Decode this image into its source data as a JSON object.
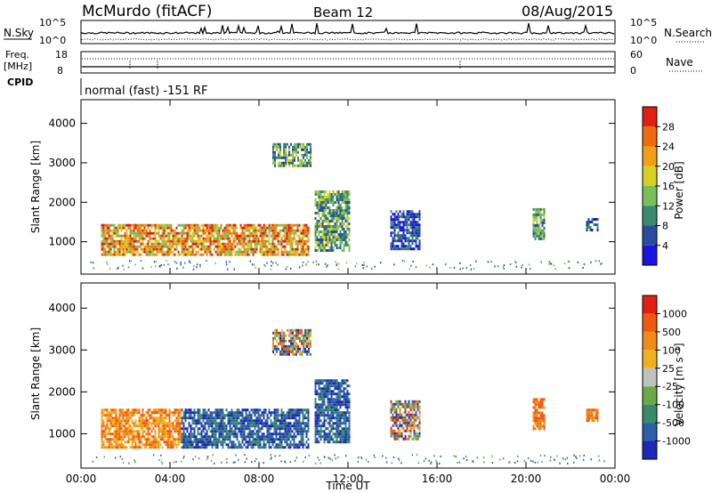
{
  "header": {
    "station": "McMurdo (fitACF)",
    "beam": "Beam 12",
    "date": "08/Aug/2015"
  },
  "strip": {
    "nsky_label": "N.Sky",
    "nsearch_label": "N.Search",
    "noise_ticks": [
      "10^5",
      "10^0"
    ],
    "freq_label_1": "Freq.",
    "freq_label_2": "[MHz]",
    "freq_ticks": [
      "18",
      "8"
    ],
    "nave_label": "Nave",
    "nave_ticks": [
      "60",
      "0"
    ],
    "cpid_label": "CPID",
    "cpid_text": "normal (fast) -151 RF"
  },
  "colorbars": {
    "power": {
      "label": "Power [dB]",
      "ticks": [
        "28",
        "24",
        "20",
        "16",
        "12",
        "8",
        "4"
      ],
      "colors": [
        "#1a14e0",
        "#2a4ca0",
        "#3a8a70",
        "#7ac05a",
        "#d8d020",
        "#f0a018",
        "#f06a10",
        "#e02010"
      ]
    },
    "velocity": {
      "label": "Velocity [m s⁻¹]",
      "ticks": [
        "1000",
        "500",
        "100",
        "25",
        "-25",
        "-100",
        "-500",
        "-1000"
      ],
      "colors": [
        "#1c2ab8",
        "#2e5ea8",
        "#3a8a6a",
        "#6aa84a",
        "#c0c0c0",
        "#f0b020",
        "#f08a18",
        "#f05a10",
        "#e02010"
      ]
    }
  },
  "chart_data": [
    {
      "type": "heatmap",
      "title": "Power",
      "ylabel": "Slant Range [km]",
      "xlabel": "Time UT",
      "x_ticks": [
        "00:00",
        "04:00",
        "08:00",
        "12:00",
        "16:00",
        "20:00",
        "00:00"
      ],
      "y_ticks": [
        "1000",
        "2000",
        "3000",
        "4000"
      ],
      "xlim_hours": [
        0,
        24
      ],
      "ylim_km": [
        180,
        4600
      ],
      "echo_regions": [
        {
          "t0": 0.9,
          "t1": 10.2,
          "r0": 650,
          "r1": 1450,
          "level": "high"
        },
        {
          "t0": 10.5,
          "t1": 12.1,
          "r0": 800,
          "r1": 2300,
          "level": "mid"
        },
        {
          "t0": 8.6,
          "t1": 10.3,
          "r0": 2900,
          "r1": 3500,
          "level": "mid"
        },
        {
          "t0": 13.9,
          "t1": 15.2,
          "r0": 850,
          "r1": 1800,
          "level": "low"
        },
        {
          "t0": 20.3,
          "t1": 20.8,
          "r0": 1100,
          "r1": 1850,
          "level": "mid"
        },
        {
          "t0": 22.7,
          "t1": 23.2,
          "r0": 1300,
          "r1": 1600,
          "level": "low"
        }
      ]
    },
    {
      "type": "heatmap",
      "title": "Velocity",
      "ylabel": "Slant Range [km]",
      "xlabel": "Time UT",
      "x_ticks": [
        "00:00",
        "04:00",
        "08:00",
        "12:00",
        "16:00",
        "20:00",
        "00:00"
      ],
      "y_ticks": [
        "1000",
        "2000",
        "3000",
        "4000"
      ],
      "xlim_hours": [
        0,
        24
      ],
      "ylim_km": [
        180,
        4600
      ],
      "echo_regions": [
        {
          "t0": 0.9,
          "t1": 4.5,
          "r0": 650,
          "r1": 1600,
          "level": "away-slow"
        },
        {
          "t0": 4.5,
          "t1": 10.2,
          "r0": 650,
          "r1": 1600,
          "level": "toward"
        },
        {
          "t0": 10.5,
          "t1": 12.1,
          "r0": 800,
          "r1": 2300,
          "level": "toward"
        },
        {
          "t0": 8.6,
          "t1": 10.3,
          "r0": 2900,
          "r1": 3500,
          "level": "mixed"
        },
        {
          "t0": 13.9,
          "t1": 15.2,
          "r0": 850,
          "r1": 1800,
          "level": "mixed"
        },
        {
          "t0": 20.3,
          "t1": 20.8,
          "r0": 1100,
          "r1": 1850,
          "level": "away"
        },
        {
          "t0": 22.7,
          "t1": 23.2,
          "r0": 1300,
          "r1": 1600,
          "level": "away"
        }
      ]
    }
  ]
}
